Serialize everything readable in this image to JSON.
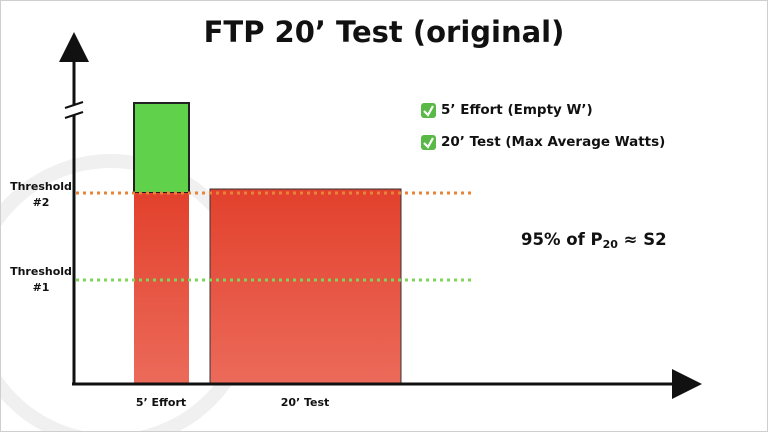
{
  "title": "FTP 20’ Test (original)",
  "thresholds": [
    {
      "label": "Threshold #2"
    },
    {
      "label": "Threshold #1"
    }
  ],
  "bars": [
    {
      "label": "5’ Effort"
    },
    {
      "label": "20’ Test"
    }
  ],
  "checklist": [
    "5’ Effort (Empty W’)",
    "20’ Test (Max Average Watts)"
  ],
  "formula": {
    "before": "95% of P",
    "subscript": "20",
    "after": " ≈ S2"
  }
}
